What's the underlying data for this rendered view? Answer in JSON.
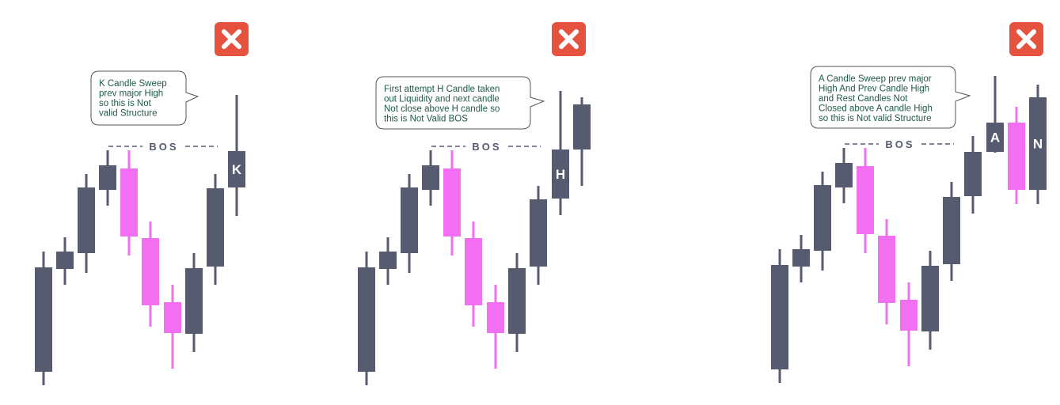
{
  "panels": [
    {
      "callout": {
        "lines": [
          "K Candle Sweep",
          "prev major High",
          "so this is Not",
          "valid Structure"
        ]
      },
      "bos_label": "BOS",
      "candle_labels": [
        "K"
      ]
    },
    {
      "callout": {
        "lines": [
          "First attempt H Candle taken",
          "out Liquidity  and next candle",
          "Not close above  H candle so",
          "this is Not Valid BOS"
        ]
      },
      "bos_label": "BOS",
      "candle_labels": [
        "H"
      ]
    },
    {
      "callout": {
        "lines": [
          "A Candle Sweep prev major",
          "High And Prev Candle High",
          "and Rest Candles Not",
          "Closed above A candle High",
          "so this is Not valid Structure"
        ]
      },
      "bos_label": "BOS",
      "candle_labels": [
        "A",
        "N"
      ]
    }
  ]
}
